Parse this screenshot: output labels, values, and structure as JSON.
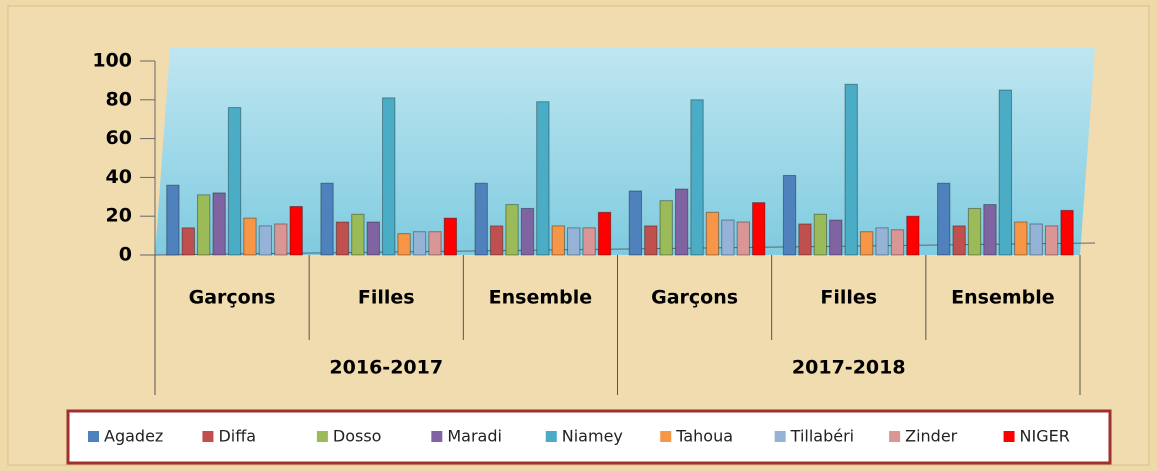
{
  "chart_data": {
    "type": "bar",
    "categories": [
      "Garçons",
      "Filles",
      "Ensemble",
      "Garçons",
      "Filles",
      "Ensemble"
    ],
    "groups": [
      "2016-2017",
      "2017-2018"
    ],
    "series": [
      {
        "name": "Agadez",
        "color": "#4f81bd",
        "values": [
          36,
          37,
          37,
          33,
          41,
          37
        ]
      },
      {
        "name": "Diffa",
        "color": "#c0504d",
        "values": [
          14,
          17,
          15,
          15,
          16,
          15
        ]
      },
      {
        "name": "Dosso",
        "color": "#9bbb59",
        "values": [
          31,
          21,
          26,
          28,
          21,
          24
        ]
      },
      {
        "name": "Maradi",
        "color": "#8064a2",
        "values": [
          32,
          17,
          24,
          34,
          18,
          26
        ]
      },
      {
        "name": "Niamey",
        "color": "#4bacc6",
        "values": [
          76,
          81,
          79,
          80,
          88,
          85
        ]
      },
      {
        "name": "Tahoua",
        "color": "#f79646",
        "values": [
          19,
          11,
          15,
          22,
          12,
          17
        ]
      },
      {
        "name": "Tillabéri",
        "color": "#95b3d7",
        "values": [
          15,
          12,
          14,
          18,
          14,
          16
        ]
      },
      {
        "name": "Zinder",
        "color": "#d99694",
        "values": [
          16,
          12,
          14,
          17,
          13,
          15
        ]
      },
      {
        "name": "NIGER",
        "color": "#ff0000",
        "values": [
          25,
          19,
          22,
          27,
          20,
          23
        ]
      }
    ],
    "ylim": [
      0,
      100
    ],
    "yticks": [
      0,
      20,
      40,
      60,
      80,
      100
    ],
    "legend": "bottom"
  }
}
